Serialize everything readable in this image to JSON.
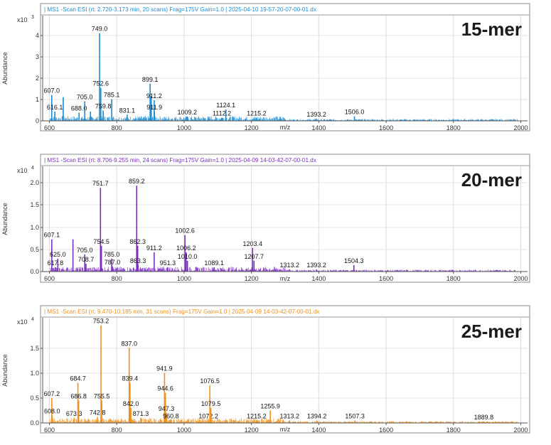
{
  "chart_data": [
    {
      "type": "line",
      "header": "| MS1 -Scan ESI (rt: 2.720-3.173 min, 20 scans) Frag=175V Gain=1.0 | 2025-04-10 19-57-20-07-00-01.dx",
      "panel_label": "15-mer",
      "ylabel": "Abundance",
      "xlabel": "m/z",
      "y_multiplier": "x10",
      "y_exponent": "3",
      "color": "#1f8bd0",
      "xlim": [
        580,
        2020
      ],
      "ylim": [
        0,
        5.1
      ],
      "x_ticks": [
        "600",
        "800",
        "1000",
        "1200",
        "1400",
        "1600",
        "1800",
        "2000"
      ],
      "y_ticks": [
        "0",
        "1",
        "2",
        "3",
        "4"
      ],
      "peaks": [
        {
          "mz": 607.0,
          "y": 1.25,
          "label": "607.0"
        },
        {
          "mz": 616.1,
          "y": 0.45,
          "label": "616.1"
        },
        {
          "mz": 641.0,
          "y": 1.15,
          "label": ""
        },
        {
          "mz": 688.0,
          "y": 0.4,
          "label": "688.0"
        },
        {
          "mz": 705.0,
          "y": 0.95,
          "label": "705.0"
        },
        {
          "mz": 722.0,
          "y": 0.45,
          "label": ""
        },
        {
          "mz": 749.0,
          "y": 4.25,
          "label": "749.0"
        },
        {
          "mz": 752.6,
          "y": 1.6,
          "label": "752.6"
        },
        {
          "mz": 759.8,
          "y": 0.5,
          "label": "759.8"
        },
        {
          "mz": 785.1,
          "y": 1.05,
          "label": "785.1"
        },
        {
          "mz": 831.1,
          "y": 0.3,
          "label": "831.1"
        },
        {
          "mz": 899.1,
          "y": 1.8,
          "label": "899.1"
        },
        {
          "mz": 902.5,
          "y": 1.2,
          "label": ""
        },
        {
          "mz": 911.2,
          "y": 1.0,
          "label": "911.2"
        },
        {
          "mz": 911.9,
          "y": 0.45,
          "label": "911.9"
        },
        {
          "mz": 1009.2,
          "y": 0.2,
          "label": "1009.2"
        },
        {
          "mz": 1112.2,
          "y": 0.15,
          "label": "1112.2"
        },
        {
          "mz": 1124.1,
          "y": 0.55,
          "label": "1124.1"
        },
        {
          "mz": 1215.2,
          "y": 0.15,
          "label": "1215.2"
        },
        {
          "mz": 1393.2,
          "y": 0.1,
          "label": "1393.2"
        },
        {
          "mz": 1506.0,
          "y": 0.22,
          "label": "1506.0"
        }
      ]
    },
    {
      "type": "line",
      "header": "| MS1 -Scan ESI (rt: 8.706-9.255 min, 24 scans) Frag=175V Gain=1.0 | 2025-04-09 14-03-42-07-00-01.dx",
      "panel_label": "20-mer",
      "ylabel": "Abundance",
      "xlabel": "m/z",
      "y_multiplier": "x10",
      "y_exponent": "4",
      "color": "#7b2fbf",
      "xlim": [
        580,
        2020
      ],
      "ylim": [
        0,
        2.45
      ],
      "x_ticks": [
        "600",
        "800",
        "1000",
        "1200",
        "1400",
        "1600",
        "1800",
        "2000"
      ],
      "y_ticks": [
        "0.0",
        "0.5",
        "1.0",
        "1.5",
        "2.0"
      ],
      "peaks": [
        {
          "mz": 607.1,
          "y": 0.75,
          "label": "607.1"
        },
        {
          "mz": 617.8,
          "y": 0.1,
          "label": "617.8"
        },
        {
          "mz": 625.0,
          "y": 0.3,
          "label": "625.0"
        },
        {
          "mz": 670.0,
          "y": 0.75,
          "label": ""
        },
        {
          "mz": 705.0,
          "y": 0.4,
          "label": "705.0"
        },
        {
          "mz": 708.7,
          "y": 0.18,
          "label": "708.7"
        },
        {
          "mz": 751.7,
          "y": 1.95,
          "label": "751.7"
        },
        {
          "mz": 754.5,
          "y": 0.6,
          "label": "754.5"
        },
        {
          "mz": 785.0,
          "y": 0.3,
          "label": "785.0"
        },
        {
          "mz": 787.0,
          "y": 0.12,
          "label": "787.0"
        },
        {
          "mz": 859.2,
          "y": 2.0,
          "label": "859.2"
        },
        {
          "mz": 862.3,
          "y": 0.6,
          "label": "862.3"
        },
        {
          "mz": 863.3,
          "y": 0.15,
          "label": "863.3"
        },
        {
          "mz": 911.2,
          "y": 0.45,
          "label": "911.2"
        },
        {
          "mz": 951.3,
          "y": 0.1,
          "label": "951.3"
        },
        {
          "mz": 1002.6,
          "y": 0.85,
          "label": "1002.6"
        },
        {
          "mz": 1006.2,
          "y": 0.45,
          "label": "1006.2"
        },
        {
          "mz": 1010.0,
          "y": 0.25,
          "label": "1010.0"
        },
        {
          "mz": 1089.1,
          "y": 0.1,
          "label": "1089.1"
        },
        {
          "mz": 1203.4,
          "y": 0.55,
          "label": "1203.4"
        },
        {
          "mz": 1207.7,
          "y": 0.25,
          "label": "1207.7"
        },
        {
          "mz": 1313.2,
          "y": 0.05,
          "label": "1313.2"
        },
        {
          "mz": 1393.2,
          "y": 0.05,
          "label": "1393.2"
        },
        {
          "mz": 1504.3,
          "y": 0.15,
          "label": "1504.3"
        }
      ]
    },
    {
      "type": "line",
      "header": "| MS1 -Scan ESI (rt: 9.470-10.185 min, 31 scans) Frag=175V Gain=1.0 | 2025-04-09 14-03-42-07-00-01.dx",
      "panel_label": "25-mer",
      "ylabel": "Abundance",
      "xlabel": "m/z",
      "y_multiplier": "x10",
      "y_exponent": "4",
      "color": "#f0901c",
      "xlim": [
        580,
        2020
      ],
      "ylim": [
        0,
        2.1
      ],
      "x_ticks": [
        "600",
        "800",
        "1000",
        "1200",
        "1400",
        "1600",
        "1800",
        "2000"
      ],
      "y_ticks": [
        "0.0",
        "0.5",
        "1.0",
        "1.5"
      ],
      "peaks": [
        {
          "mz": 607.2,
          "y": 0.5,
          "label": "607.2"
        },
        {
          "mz": 608.0,
          "y": 0.15,
          "label": "608.0"
        },
        {
          "mz": 673.3,
          "y": 0.1,
          "label": "673.3"
        },
        {
          "mz": 684.7,
          "y": 0.8,
          "label": "684.7"
        },
        {
          "mz": 686.8,
          "y": 0.45,
          "label": "686.8"
        },
        {
          "mz": 742.8,
          "y": 0.12,
          "label": "742.8"
        },
        {
          "mz": 753.2,
          "y": 1.95,
          "label": "753.2"
        },
        {
          "mz": 755.5,
          "y": 0.45,
          "label": "755.5"
        },
        {
          "mz": 837.0,
          "y": 1.5,
          "label": "837.0"
        },
        {
          "mz": 839.4,
          "y": 0.8,
          "label": "839.4"
        },
        {
          "mz": 842.0,
          "y": 0.3,
          "label": "842.0"
        },
        {
          "mz": 871.3,
          "y": 0.1,
          "label": "871.3"
        },
        {
          "mz": 941.9,
          "y": 1.0,
          "label": "941.9"
        },
        {
          "mz": 944.6,
          "y": 0.6,
          "label": "944.6"
        },
        {
          "mz": 947.3,
          "y": 0.2,
          "label": "947.3"
        },
        {
          "mz": 960.8,
          "y": 0.05,
          "label": "960.8"
        },
        {
          "mz": 1072.2,
          "y": 0.05,
          "label": "1072.2"
        },
        {
          "mz": 1076.5,
          "y": 0.75,
          "label": "1076.5"
        },
        {
          "mz": 1079.5,
          "y": 0.3,
          "label": "1079.5"
        },
        {
          "mz": 1215.2,
          "y": 0.05,
          "label": "1215.2"
        },
        {
          "mz": 1255.9,
          "y": 0.25,
          "label": "1255.9"
        },
        {
          "mz": 1313.2,
          "y": 0.05,
          "label": "1313.2"
        },
        {
          "mz": 1394.2,
          "y": 0.05,
          "label": "1394.2"
        },
        {
          "mz": 1507.3,
          "y": 0.05,
          "label": "1507.3"
        },
        {
          "mz": 1889.8,
          "y": 0.03,
          "label": "1889.8"
        }
      ]
    }
  ]
}
